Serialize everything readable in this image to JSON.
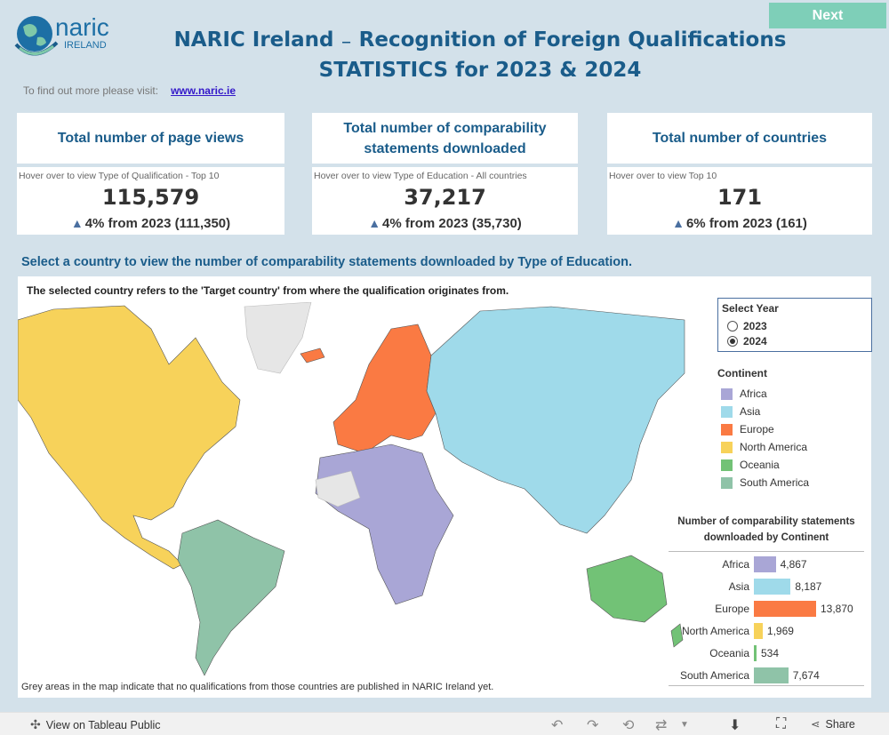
{
  "header": {
    "logo_text": "naric",
    "logo_sub": "IRELAND",
    "title_line1": "NARIC Ireland ₋ Recognition of Foreign Qualifications",
    "title_line2": "STATISTICS for 2023 & 2024",
    "next_label": "Next",
    "visit_text": "To find out more please visit:",
    "visit_link": "www.naric.ie"
  },
  "kpis": [
    {
      "title": "Total number of page views",
      "hover": "Hover over to view Type of Qualification - Top 10",
      "value": "115,579",
      "change": "4% from 2023 (111,350)"
    },
    {
      "title": "Total number of comparability statements downloaded",
      "hover": "Hover over to view Type of Education - All countries",
      "value": "37,217",
      "change": "4% from 2023 (35,730)"
    },
    {
      "title": "Total number of countries",
      "hover": "Hover over to view Top 10",
      "value": "171",
      "change": "6% from 2023 (161)"
    }
  ],
  "map": {
    "section_title": "Select a country to view the number of comparability statements downloaded by Type of Education.",
    "note": "The selected country refers to the 'Target country' from where the qualification originates from.",
    "grey_note": "Grey areas in the map indicate that no qualifications from those countries are published in NARIC Ireland yet."
  },
  "year_filter": {
    "title": "Select Year",
    "options": [
      "2023",
      "2024"
    ],
    "selected": "2024"
  },
  "legend": {
    "title": "Continent",
    "items": [
      {
        "label": "Africa",
        "color": "#a9a6d6"
      },
      {
        "label": "Asia",
        "color": "#9fdaea"
      },
      {
        "label": "Europe",
        "color": "#fa7a43"
      },
      {
        "label": "North America",
        "color": "#f7d25a"
      },
      {
        "label": "Oceania",
        "color": "#72c276"
      },
      {
        "label": "South America",
        "color": "#8fc3a8"
      }
    ]
  },
  "chart_data": {
    "type": "bar",
    "title": "Number of comparability statements downloaded by Continent",
    "categories": [
      "Africa",
      "Asia",
      "Europe",
      "North America",
      "Oceania",
      "South America"
    ],
    "values": [
      4867,
      8187,
      13870,
      1969,
      534,
      7674
    ],
    "value_labels": [
      "4,867",
      "8,187",
      "13,870",
      "1,969",
      "534",
      "7,674"
    ],
    "colors": [
      "#a9a6d6",
      "#9fdaea",
      "#fa7a43",
      "#f7d25a",
      "#72c276",
      "#8fc3a8"
    ]
  },
  "footer": {
    "view_label": "View on Tableau Public",
    "share_label": "Share"
  }
}
